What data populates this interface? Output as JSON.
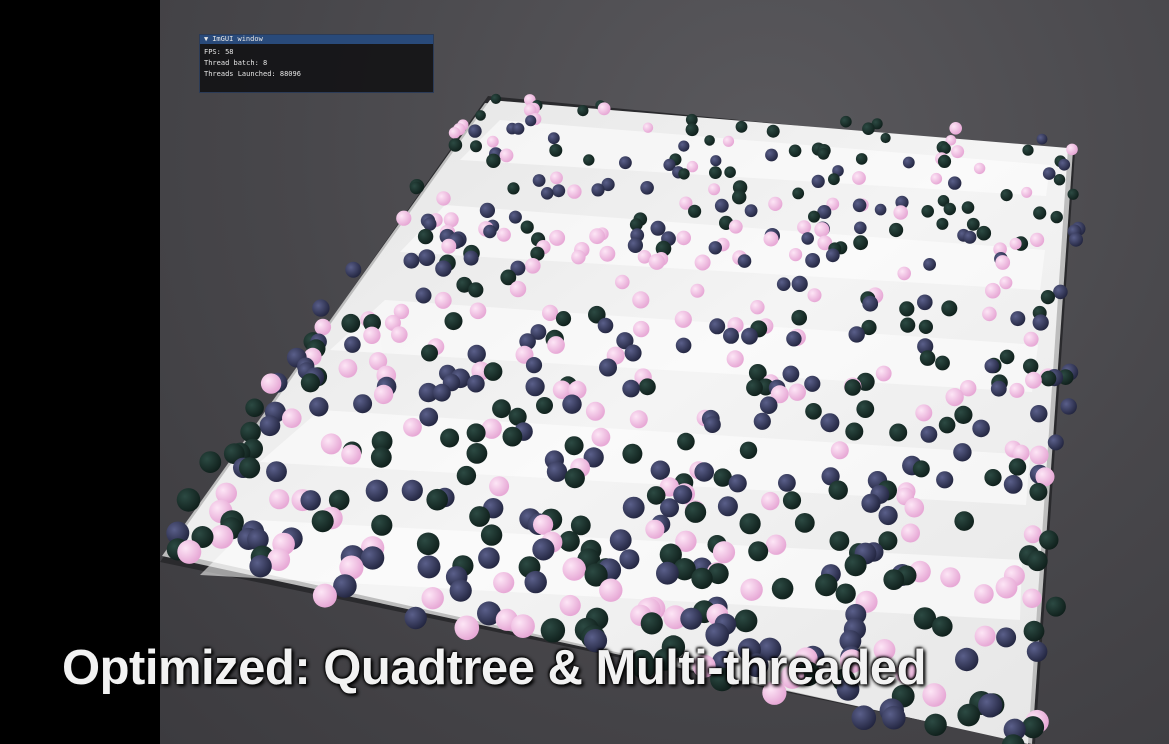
{
  "imgui_window": {
    "title": "ImGUI window",
    "collapse_icon": "triangle-down-icon",
    "fps_line": "FPS: 58",
    "thread_batch_line": "Thread batch: 8",
    "threads_launched_line": "Threads Launched: 88096"
  },
  "caption": "Optimized: Quadtree & Multi-threaded",
  "colors": {
    "ball_pink": "#f2c4e6",
    "ball_dark_green": "#1a2f2a",
    "ball_speckled_navy": "#2f3355",
    "floor": "#f0f0f0",
    "background": "#48474b"
  }
}
